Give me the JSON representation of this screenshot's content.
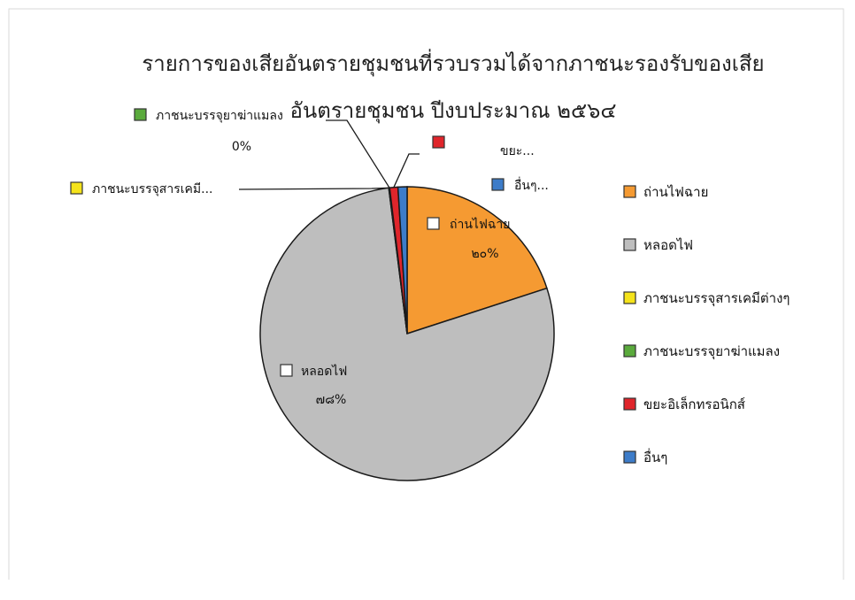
{
  "chart_data": {
    "type": "pie",
    "title_lines": [
      "รายการของเสียอันตรายชุมชนที่รวบรวมได้จากภาชนะรองรับของเสีย",
      "อันตรายชุมชน ปีงบประมาณ ๒๕๖๔"
    ],
    "slices": [
      {
        "name": "ถ่านไฟฉาย",
        "value": 20,
        "color": "#f59a32",
        "label": "ถ่านไฟฉาย",
        "pct_label": "๒๐%"
      },
      {
        "name": "หลอดไฟ",
        "value": 78,
        "color": "#bebebe",
        "label": "หลอดไฟ",
        "pct_label": "๗๘%"
      },
      {
        "name": "ภาชนะบรรจุสารเคมีต่างๆ",
        "value": 0.05,
        "color": "#f5e31b",
        "label": "ภาชนะบรรจุสารเคมี..."
      },
      {
        "name": "ภาชนะบรรจุยาฆ่าแมลง",
        "value": 0.05,
        "color": "#5aaa3c",
        "label": "ภาชนะบรรจุยาฆ่าแมลง",
        "pct_label": "0%"
      },
      {
        "name": "ขยะอิเล็กทรอนิกส์",
        "value": 0.9,
        "color": "#e0252b",
        "label": "ขยะ..."
      },
      {
        "name": "อื่นๆ",
        "value": 1.0,
        "color": "#3d7cc9",
        "label": "อื่นๆ..."
      }
    ],
    "legend": {
      "position": "right",
      "items": [
        "ถ่านไฟฉาย",
        "หลอดไฟ",
        "ภาชนะบรรจุสารเคมีต่างๆ",
        "ภาชนะบรรจุยาฆ่าแมลง",
        "ขยะอิเล็กทรอนิกส์",
        "อื่นๆ"
      ]
    }
  }
}
